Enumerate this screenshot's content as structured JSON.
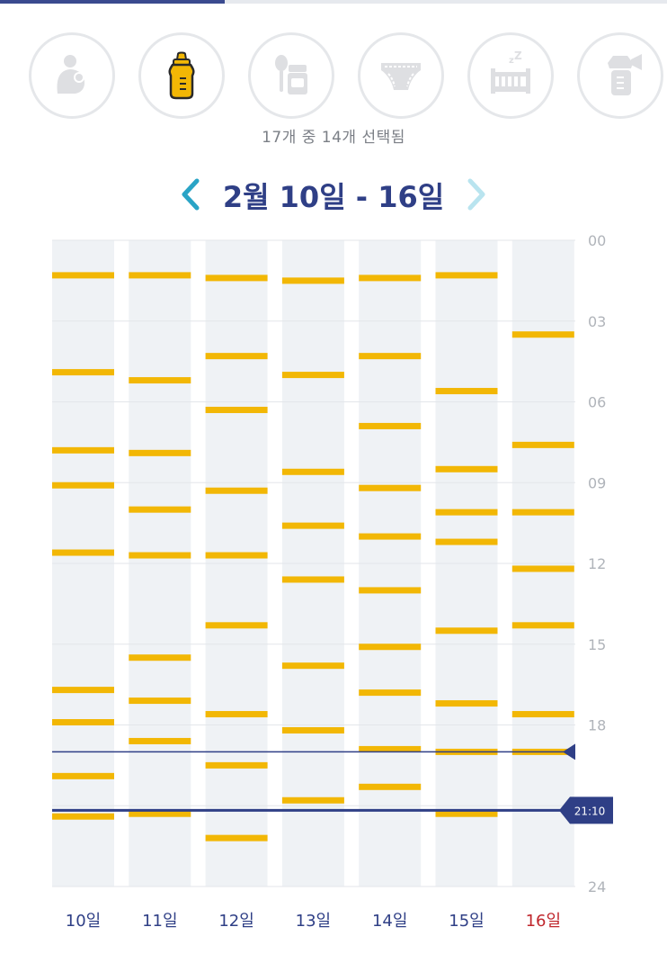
{
  "categories": [
    {
      "name": "nursing",
      "icon": "nursing-mother-icon",
      "selected": false
    },
    {
      "name": "bottle",
      "icon": "baby-bottle-icon",
      "selected": true
    },
    {
      "name": "baby-food",
      "icon": "baby-food-icon",
      "selected": false
    },
    {
      "name": "diaper",
      "icon": "diaper-icon",
      "selected": false
    },
    {
      "name": "sleep",
      "icon": "crib-sleep-icon",
      "selected": false
    },
    {
      "name": "pump",
      "icon": "breast-pump-icon",
      "selected": false
    }
  ],
  "selection_summary": "17개 중 14개 선택됨",
  "week": {
    "title": "2월 10일 - 16일",
    "prev_enabled": true,
    "next_enabled": false
  },
  "colors": {
    "accent": "#2f3f86",
    "event": "#f2b705",
    "column_bg": "#eff2f5",
    "today_label": "#c0272d",
    "day_label": "#2f3f86",
    "hour_label": "#b0b4ba",
    "arrow_prev": "#2aa4c6",
    "arrow_next": "#b9e4ef",
    "inactive_icon": "#dedfe2"
  },
  "chart_data": {
    "type": "timeline",
    "y_axis": {
      "ticks": [
        "00",
        "03",
        "06",
        "09",
        "12",
        "15",
        "18",
        "21",
        "24"
      ],
      "range_hours": [
        0,
        24
      ]
    },
    "days": [
      {
        "label": "10일",
        "today": false,
        "events_hours": [
          1.3,
          4.9,
          7.8,
          9.1,
          11.6,
          16.7,
          17.9,
          19.9,
          21.4
        ]
      },
      {
        "label": "11일",
        "today": false,
        "events_hours": [
          1.3,
          5.2,
          7.9,
          10.0,
          11.7,
          15.5,
          17.1,
          18.6,
          21.3
        ]
      },
      {
        "label": "12일",
        "today": false,
        "events_hours": [
          1.4,
          4.3,
          6.3,
          9.3,
          11.7,
          14.3,
          17.6,
          19.5,
          22.2
        ]
      },
      {
        "label": "13일",
        "today": false,
        "events_hours": [
          1.5,
          5.0,
          8.6,
          10.6,
          12.6,
          15.8,
          18.2,
          20.8
        ]
      },
      {
        "label": "14일",
        "today": false,
        "events_hours": [
          1.4,
          4.3,
          6.9,
          9.2,
          11.0,
          13.0,
          15.1,
          16.8,
          18.9,
          20.3
        ]
      },
      {
        "label": "15일",
        "today": false,
        "events_hours": [
          1.3,
          5.6,
          8.5,
          10.1,
          11.2,
          14.5,
          17.2,
          19.0,
          21.3
        ]
      },
      {
        "label": "16일",
        "today": true,
        "events_hours": [
          3.5,
          7.6,
          10.1,
          12.2,
          14.3,
          17.6,
          19.0
        ]
      }
    ],
    "marker_lines": [
      {
        "hour": 19.0,
        "label": ""
      },
      {
        "hour": 21.17,
        "label": "21:10"
      }
    ]
  }
}
